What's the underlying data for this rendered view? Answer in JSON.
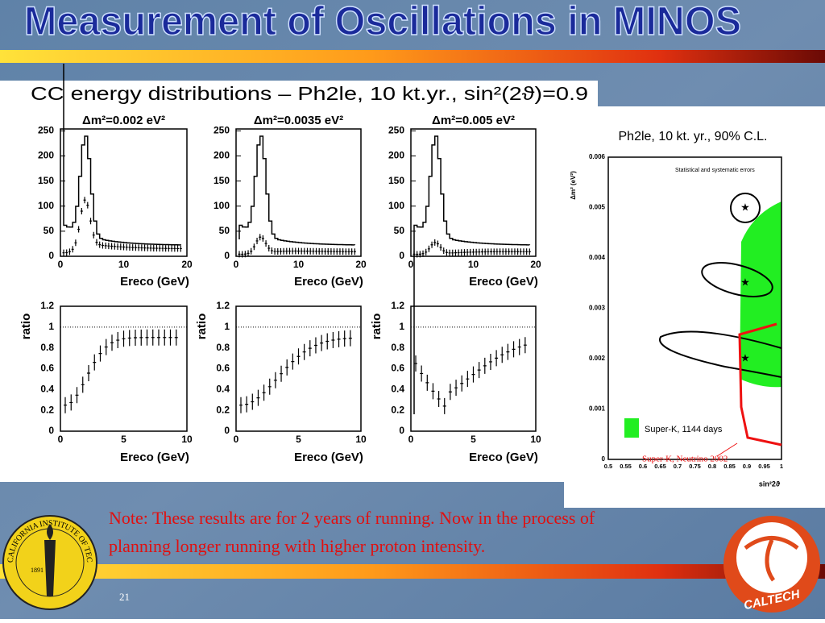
{
  "slide": {
    "title": "Measurement of Oscillations in MINOS",
    "note": [
      "Note: These results are for 2 years of running. Now in the process of",
      "planning longer running with higher proton intensity."
    ],
    "page_number": "21"
  },
  "left_figure": {
    "title": "CC energy distributions – Ph2le, 10 kt.yr., sin²(2ϑ)=0.9",
    "panels": [
      {
        "title": "Δm²=0.002 eV²"
      },
      {
        "title": "Δm²=0.0035 eV²"
      },
      {
        "title": "Δm²=0.005 eV²"
      }
    ],
    "top_y_ticks": [
      "0",
      "50",
      "100",
      "150",
      "200",
      "250"
    ],
    "top_x_ticks": [
      "0",
      "10",
      "20"
    ],
    "x_label": "Ereco (GeV)",
    "bottom_y_label": "ratio",
    "bottom_y_ticks": [
      "0",
      "0.2",
      "0.4",
      "0.6",
      "0.8",
      "1",
      "1.2"
    ],
    "bottom_x_ticks": [
      "0",
      "5",
      "10"
    ]
  },
  "right_figure": {
    "title": "Ph2le, 10 kt. yr., 90% C.L.",
    "y_label": "Δm² (eV²)",
    "x_label": "sin²2ϑ",
    "y_ticks": [
      "0",
      "0.001",
      "0.002",
      "0.003",
      "0.004",
      "0.005",
      "0.006"
    ],
    "x_ticks": [
      "0.5",
      "0.55",
      "0.6",
      "0.65",
      "0.7",
      "0.75",
      "0.8",
      "0.85",
      "0.9",
      "0.95",
      "1"
    ],
    "errors_note": "Statistical and systematic errors",
    "legend": "Super-K, 1144 days",
    "annotation": "Super-K, Neutrino 2002"
  },
  "logos": {
    "seal_text": "CALIFORNIA INSTITUTE OF TECHNOLOGY",
    "seal_year": "1891",
    "badge": "CALTECH"
  }
}
